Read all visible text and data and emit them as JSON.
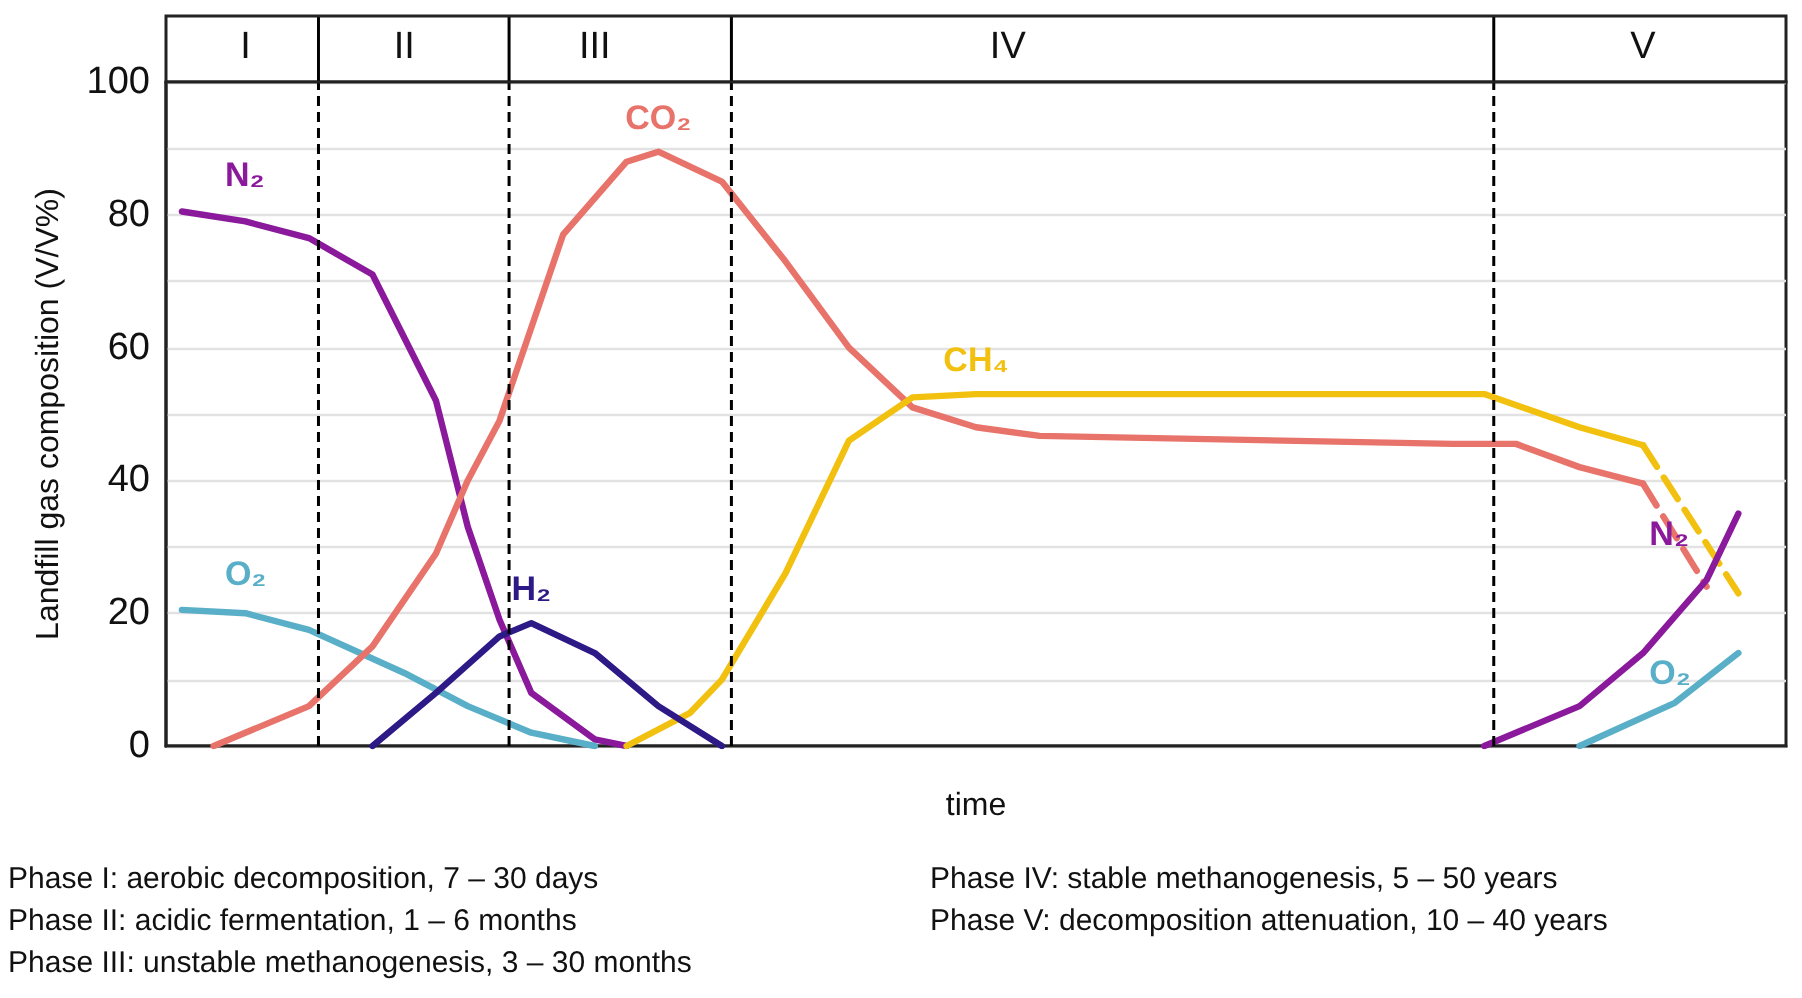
{
  "chart_data": {
    "type": "line",
    "xlabel": "time",
    "ylabel": "Landfill gas composition (V/V%)",
    "categories": [
      null,
      null,
      "I",
      null,
      null,
      null,
      null,
      "II",
      null,
      null,
      null,
      null,
      null,
      "III",
      null,
      null,
      null,
      null,
      null,
      null,
      null,
      null,
      null,
      null,
      null,
      null,
      "IV",
      null,
      null,
      null,
      null,
      null,
      null,
      null,
      null,
      null,
      null,
      null,
      null,
      null,
      null,
      null,
      null,
      null,
      null,
      null,
      "V",
      null,
      null,
      null,
      null
    ],
    "ylim": [
      0,
      100
    ],
    "yticks": [
      0,
      {
        "value": 10,
        "label": null
      },
      20,
      {
        "value": 30,
        "label": null
      },
      40,
      {
        "value": 50,
        "label": null
      },
      60,
      {
        "value": 70,
        "label": null
      },
      80,
      {
        "value": 90,
        "label": null
      },
      100
    ],
    "grid": "y",
    "marker": "none",
    "line_style": "solid",
    "legend": false,
    "series": [
      {
        "name": "O₂",
        "color": "#5aafc8",
        "values": [
          20.5,
          null,
          20,
          null,
          17.5,
          null,
          null,
          11,
          null,
          6,
          null,
          2,
          null,
          0,
          null,
          null,
          null,
          null,
          null,
          null,
          null,
          null,
          null,
          null,
          null,
          null,
          null,
          null,
          null,
          null,
          null,
          null,
          null,
          null,
          null,
          null,
          null,
          null,
          null,
          null,
          null,
          null,
          null,
          null,
          null,
          null,
          null,
          null,
          null,
          null,
          null
        ]
      },
      {
        "name": "N₂",
        "color": "#8a1a9b",
        "values": [
          80.5,
          null,
          79,
          null,
          76.5,
          null,
          71,
          null,
          52,
          33,
          19,
          8,
          null,
          1,
          0,
          null,
          null,
          null,
          null,
          null,
          null,
          null,
          null,
          null,
          null,
          null,
          null,
          null,
          null,
          null,
          null,
          null,
          null,
          null,
          null,
          null,
          null,
          null,
          null,
          null,
          null,
          null,
          null,
          null,
          null,
          null,
          null,
          null,
          null,
          null,
          null
        ]
      },
      {
        "name": "CO₂",
        "color": "#e8736a",
        "values": [
          null,
          0,
          null,
          null,
          6,
          null,
          15,
          null,
          29,
          40,
          49,
          null,
          77,
          null,
          88,
          89.5,
          null,
          85,
          null,
          73,
          null,
          60,
          null,
          51,
          null,
          48,
          null,
          46.7,
          null,
          null,
          null,
          null,
          null,
          null,
          null,
          null,
          null,
          null,
          null,
          null,
          45.5,
          null,
          45.5,
          null,
          42,
          null,
          39.5,
          null,
          null,
          null,
          null
        ]
      },
      {
        "color": "#e8736a",
        "line_style": "dashed",
        "values": [
          null,
          null,
          null,
          null,
          null,
          null,
          null,
          null,
          null,
          null,
          null,
          null,
          null,
          null,
          null,
          null,
          null,
          null,
          null,
          null,
          null,
          null,
          null,
          null,
          null,
          null,
          null,
          null,
          null,
          null,
          null,
          null,
          null,
          null,
          null,
          null,
          null,
          null,
          null,
          null,
          null,
          null,
          null,
          null,
          null,
          null,
          39.5,
          null,
          24,
          null,
          null
        ]
      },
      {
        "name": "CH₄",
        "color": "#f2c10f",
        "values": [
          null,
          null,
          null,
          null,
          null,
          null,
          null,
          null,
          null,
          null,
          null,
          null,
          null,
          null,
          0,
          null,
          5,
          10,
          null,
          26,
          null,
          46,
          null,
          52.5,
          null,
          53,
          null,
          null,
          null,
          null,
          null,
          null,
          null,
          null,
          null,
          null,
          null,
          null,
          null,
          null,
          null,
          53,
          null,
          null,
          48,
          null,
          45.3,
          null,
          null,
          null,
          null
        ]
      },
      {
        "color": "#f2c10f",
        "line_style": "dashed",
        "values": [
          null,
          null,
          null,
          null,
          null,
          null,
          null,
          null,
          null,
          null,
          null,
          null,
          null,
          null,
          null,
          null,
          null,
          null,
          null,
          null,
          null,
          null,
          null,
          null,
          null,
          null,
          null,
          null,
          null,
          null,
          null,
          null,
          null,
          null,
          null,
          null,
          null,
          null,
          null,
          null,
          null,
          null,
          null,
          null,
          null,
          null,
          45.3,
          null,
          null,
          23,
          null
        ]
      },
      {
        "name": "H₂",
        "color": "#2e1a87",
        "values": [
          null,
          null,
          null,
          null,
          null,
          null,
          0,
          null,
          8,
          null,
          16.5,
          18.5,
          null,
          14,
          null,
          6,
          null,
          0,
          null,
          null,
          null,
          null,
          null,
          null,
          null,
          null,
          null,
          null,
          null,
          null,
          null,
          null,
          null,
          null,
          null,
          null,
          null,
          null,
          null,
          null,
          null,
          null,
          null,
          null,
          null,
          null,
          null,
          null,
          null,
          null,
          null
        ]
      },
      {
        "name": "N₂",
        "color": "#8a1a9b",
        "values": [
          null,
          null,
          null,
          null,
          null,
          null,
          null,
          null,
          null,
          null,
          null,
          null,
          null,
          null,
          null,
          null,
          null,
          null,
          null,
          null,
          null,
          null,
          null,
          null,
          null,
          null,
          null,
          null,
          null,
          null,
          null,
          null,
          null,
          null,
          null,
          null,
          null,
          null,
          null,
          null,
          null,
          0,
          null,
          null,
          6,
          null,
          14,
          null,
          25,
          35,
          null
        ]
      },
      {
        "name": "O₂",
        "color": "#5aafc8",
        "values": [
          null,
          null,
          null,
          null,
          null,
          null,
          null,
          null,
          null,
          null,
          null,
          null,
          null,
          null,
          null,
          null,
          null,
          null,
          null,
          null,
          null,
          null,
          null,
          null,
          null,
          null,
          null,
          null,
          null,
          null,
          null,
          null,
          null,
          null,
          null,
          null,
          null,
          null,
          null,
          null,
          null,
          null,
          null,
          null,
          0,
          null,
          null,
          6.5,
          null,
          14,
          null
        ]
      }
    ],
    "annotations": [
      "Phase I: aerobic decomposition, 7 – 30 days",
      "Phase II: acidic fermentation, 1 – 6 months",
      "Phase III: unstable methanogenesis, 3 – 30 months",
      "Phase IV: stable methanogenesis, 5 – 50 years",
      "Phase V: decomposition attenuation, 10 – 40 years"
    ]
  }
}
